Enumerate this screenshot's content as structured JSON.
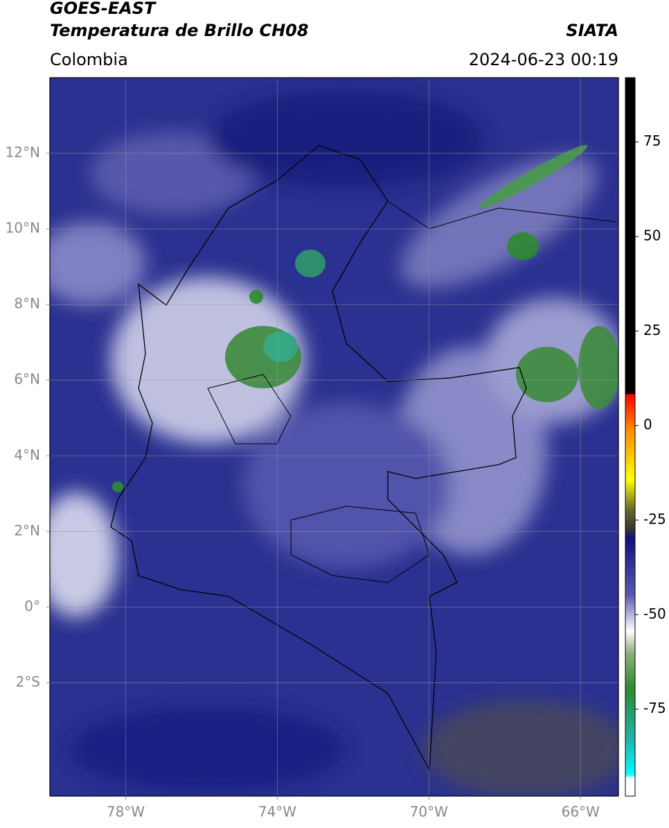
{
  "header": {
    "title": "GOES-EAST",
    "subtitle": "Temperatura de Brillo CH08",
    "source": "SIATA",
    "region": "Colombia",
    "datetime": "2024-06-23 00:19"
  },
  "map": {
    "xlim": [
      -80,
      -65
    ],
    "ylim": [
      -5,
      14
    ],
    "xticks": [
      {
        "value": -78,
        "label": "78°W"
      },
      {
        "value": -74,
        "label": "74°W"
      },
      {
        "value": -70,
        "label": "70°W"
      },
      {
        "value": -66,
        "label": "66°W"
      }
    ],
    "yticks": [
      {
        "value": 12,
        "label": "12°N"
      },
      {
        "value": 10,
        "label": "10°N"
      },
      {
        "value": 8,
        "label": "8°N"
      },
      {
        "value": 6,
        "label": "6°N"
      },
      {
        "value": 4,
        "label": "4°N"
      },
      {
        "value": 2,
        "label": "2°N"
      },
      {
        "value": 0,
        "label": "0°"
      },
      {
        "value": -2,
        "label": "2°S"
      }
    ],
    "grid": true
  },
  "colorbar": {
    "clim": [
      -98,
      92
    ],
    "ticks": [
      75,
      50,
      25,
      0,
      -25,
      -50,
      -75
    ]
  }
}
